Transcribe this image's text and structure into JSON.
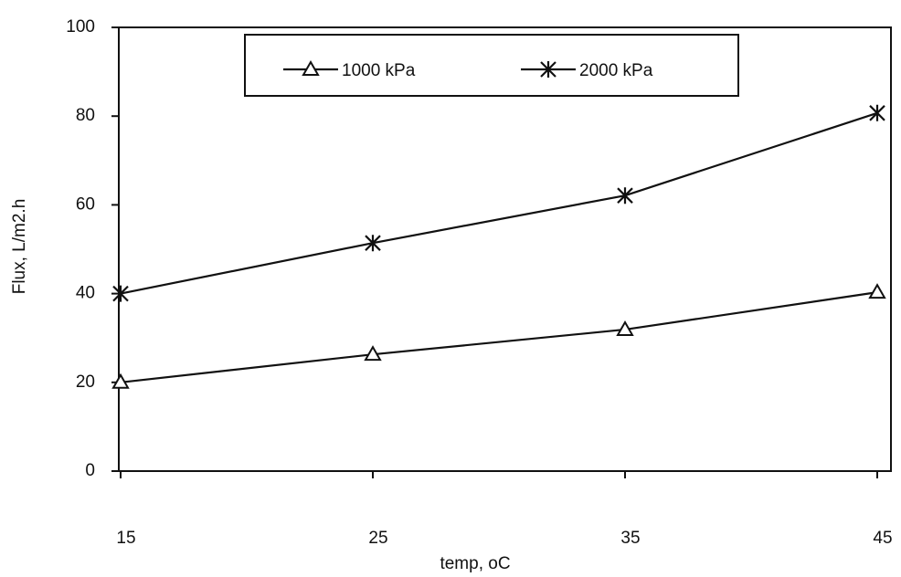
{
  "chart_data": {
    "type": "line",
    "x_label": "temp, oC",
    "y_label": "Flux, L/m2.h",
    "x": [
      15,
      25,
      35,
      45
    ],
    "series": [
      {
        "name": "1000 kPa",
        "color": "#111111",
        "marker": "triangle",
        "values": [
          20,
          26.3,
          31.9,
          40.3
        ]
      },
      {
        "name": "2000 kPa",
        "color": "#111111",
        "marker": "asterisk",
        "values": [
          40,
          51.4,
          62.1,
          80.7
        ]
      }
    ],
    "xlim": [
      15,
      45
    ],
    "xticks": [
      15,
      25,
      35,
      45
    ],
    "ylim": [
      0,
      100
    ],
    "yticks": [
      0,
      20,
      40,
      60,
      80,
      100
    ],
    "grid": false,
    "legend": "top"
  }
}
